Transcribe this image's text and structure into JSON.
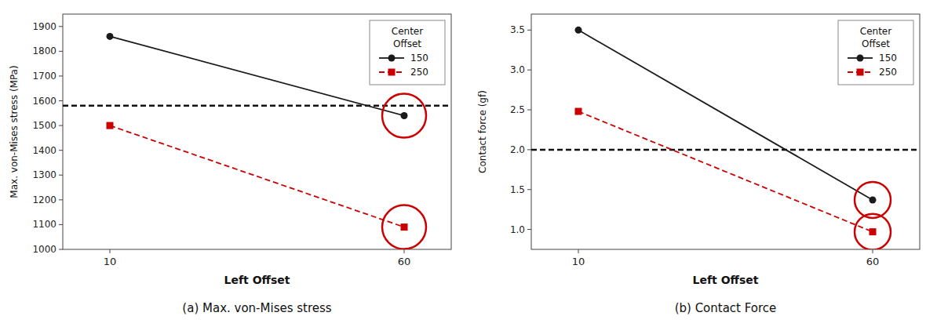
{
  "chart_data": [
    {
      "type": "line",
      "title": "(a) Max. von-Mises stress",
      "x_label": "Left Offset",
      "y_label": "Max. von-Mises stress (MPa)",
      "x": [
        10,
        60
      ],
      "series": [
        {
          "name": "150",
          "color": "#1a1a1a",
          "marker": "circle",
          "line_style": "solid",
          "values": [
            1860,
            1540
          ]
        },
        {
          "name": "250",
          "color": "#cc0000",
          "marker": "square",
          "line_style": "dashed",
          "values": [
            1500,
            1090
          ]
        }
      ],
      "reference_line": {
        "value": 1580,
        "color": "#111111",
        "line_style": "dashed"
      },
      "highlights": {
        "x": [
          60,
          60
        ],
        "values": [
          1540,
          1090
        ],
        "color": "#cc0000"
      },
      "xlim": [
        2,
        68
      ],
      "xticks": [
        10,
        60
      ],
      "ylim": [
        1000,
        1950
      ],
      "yticks": [
        1000,
        1100,
        1200,
        1300,
        1400,
        1500,
        1600,
        1700,
        1800,
        1900
      ],
      "legend_title": "Center\nOffset",
      "legend": "upper-right",
      "grid": false
    },
    {
      "type": "line",
      "title": "(b) Contact Force",
      "x_label": "Left Offset",
      "y_label": "Contact force (gf)",
      "x": [
        10,
        60
      ],
      "series": [
        {
          "name": "150",
          "color": "#1a1a1a",
          "marker": "circle",
          "line_style": "solid",
          "values": [
            3.5,
            1.37
          ]
        },
        {
          "name": "250",
          "color": "#cc0000",
          "marker": "square",
          "line_style": "dashed",
          "values": [
            2.48,
            0.97
          ]
        }
      ],
      "reference_line": {
        "value": 2.0,
        "color": "#111111",
        "line_style": "dashed"
      },
      "highlights": {
        "x": [
          60,
          60
        ],
        "values": [
          1.37,
          0.97
        ],
        "color": "#cc0000"
      },
      "xlim": [
        2,
        68
      ],
      "xticks": [
        10,
        60
      ],
      "ylim": [
        0.75,
        3.7
      ],
      "yticks": [
        {
          "value": 1.0,
          "label": "1.0"
        },
        1.5,
        {
          "value": 2.0,
          "label": "2.0"
        },
        2.5,
        {
          "value": 3.0,
          "label": "3.0"
        },
        3.5
      ],
      "legend_title": "Center\nOffset",
      "legend": "upper-right",
      "grid": false
    }
  ]
}
